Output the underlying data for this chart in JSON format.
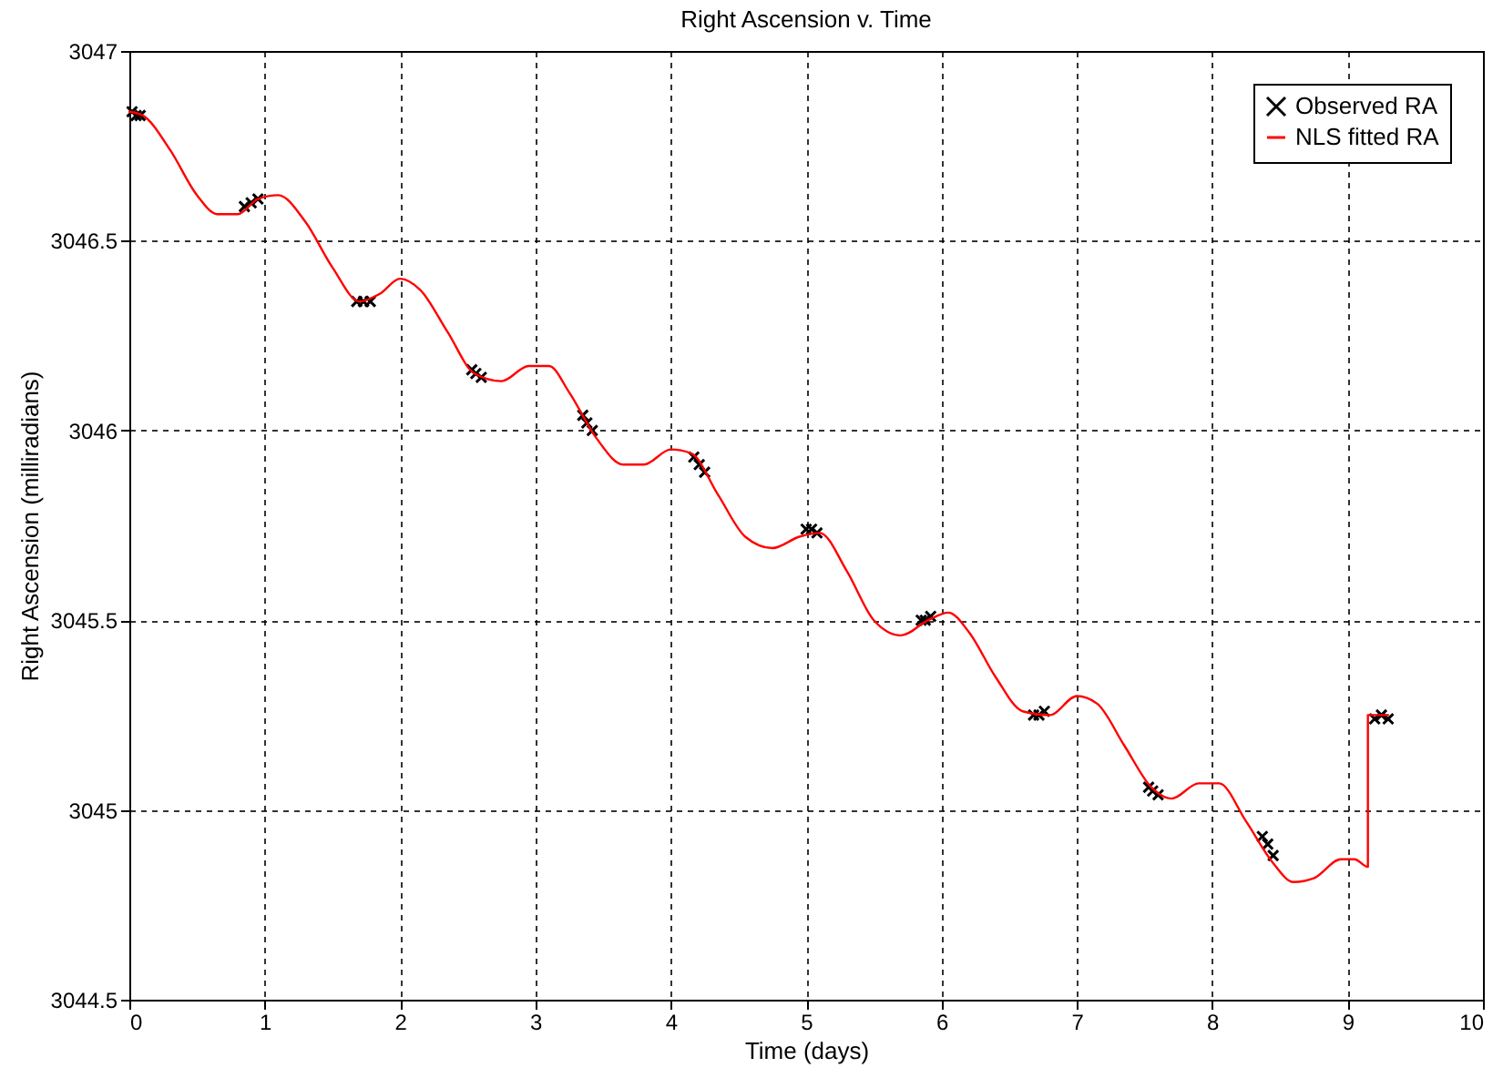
{
  "chart_data": {
    "type": "scatter",
    "title": "Right Ascension v. Time",
    "xlabel": "Time (days)",
    "ylabel": "Right Ascension (milliradians)",
    "xlim": [
      0,
      10
    ],
    "ylim": [
      3044.5,
      3047
    ],
    "xticks": [
      0,
      1,
      2,
      3,
      4,
      5,
      6,
      7,
      8,
      9,
      10
    ],
    "yticks": [
      3044.5,
      3045,
      3045.5,
      3046,
      3046.5,
      3047
    ],
    "grid": true,
    "legend": "top right",
    "series": [
      {
        "name": "Observed RA",
        "marker": "cross",
        "color": "#000000",
        "x": [
          0.02,
          0.05,
          0.08,
          0.85,
          0.9,
          0.95,
          1.68,
          1.73,
          1.78,
          2.53,
          2.56,
          2.6,
          3.35,
          3.38,
          3.42,
          4.17,
          4.21,
          4.25,
          5.0,
          5.04,
          5.08,
          5.85,
          5.88,
          5.92,
          6.68,
          6.72,
          6.76,
          7.53,
          7.56,
          7.6,
          8.37,
          8.41,
          8.45,
          9.2,
          9.25,
          9.3
        ],
        "values": [
          3046.84,
          3046.83,
          3046.83,
          3046.59,
          3046.6,
          3046.61,
          3046.34,
          3046.34,
          3046.34,
          3046.16,
          3046.15,
          3046.14,
          3046.04,
          3046.02,
          3046.0,
          3045.93,
          3045.91,
          3045.89,
          3045.74,
          3045.74,
          3045.73,
          3045.5,
          3045.5,
          3045.51,
          3045.25,
          3045.25,
          3045.26,
          3045.06,
          3045.05,
          3045.04,
          3044.93,
          3044.91,
          3044.88,
          3045.24,
          3045.25,
          3045.24
        ]
      },
      {
        "name": "NLS fitted RA",
        "type": "line",
        "marker": "none",
        "line_style": "solid",
        "color": "#ff0000",
        "x": [
          0,
          0.1,
          0.3,
          0.5,
          0.65,
          0.8,
          0.95,
          1.1,
          1.3,
          1.5,
          1.7,
          1.85,
          2.0,
          2.15,
          2.35,
          2.55,
          2.75,
          2.95,
          3.1,
          3.25,
          3.45,
          3.65,
          3.8,
          4.0,
          4.15,
          4.35,
          4.55,
          4.75,
          4.95,
          5.1,
          5.3,
          5.5,
          5.7,
          5.9,
          6.05,
          6.2,
          6.4,
          6.6,
          6.8,
          7.0,
          7.15,
          7.35,
          7.55,
          7.7,
          7.9,
          8.05,
          8.25,
          8.45,
          8.6,
          8.75,
          8.95,
          9.05,
          9.15,
          9.15,
          9.3
        ],
        "values": [
          3046.84,
          3046.83,
          3046.74,
          3046.62,
          3046.57,
          3046.57,
          3046.61,
          3046.62,
          3046.55,
          3046.43,
          3046.34,
          3046.36,
          3046.4,
          3046.37,
          3046.26,
          3046.15,
          3046.13,
          3046.17,
          3046.17,
          3046.1,
          3045.98,
          3045.91,
          3045.91,
          3045.95,
          3045.94,
          3045.83,
          3045.72,
          3045.69,
          3045.72,
          3045.73,
          3045.63,
          3045.5,
          3045.46,
          3045.5,
          3045.52,
          3045.47,
          3045.35,
          3045.26,
          3045.25,
          3045.3,
          3045.28,
          3045.17,
          3045.06,
          3045.03,
          3045.07,
          3045.07,
          3044.97,
          3044.86,
          3044.81,
          3044.82,
          3044.87,
          3044.87,
          3044.85,
          3045.25,
          3045.25
        ]
      }
    ]
  }
}
